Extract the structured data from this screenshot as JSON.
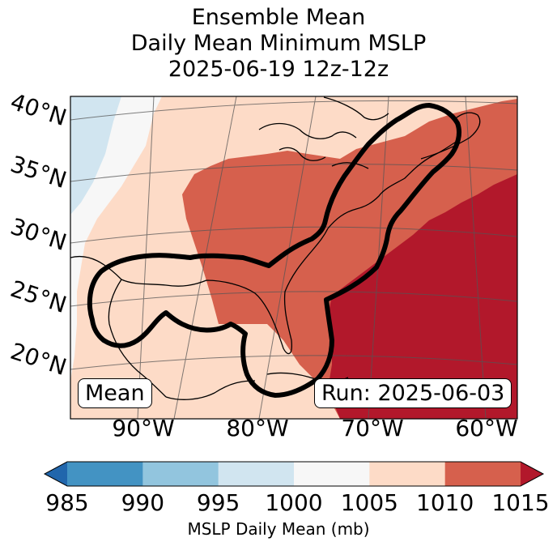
{
  "title": {
    "line1": "Ensemble Mean",
    "line2": "Daily Mean Minimum MSLP",
    "line3": "2025-06-19 12z-12z"
  },
  "map": {
    "lat_labels": [
      "40°N",
      "35°N",
      "30°N",
      "25°N",
      "20°N"
    ],
    "lon_labels": [
      "90°W",
      "80°W",
      "70°W",
      "60°W"
    ],
    "mean_label": "Mean",
    "run_label": "Run: 2025-06-03"
  },
  "colorbar": {
    "ticks": [
      "985",
      "990",
      "995",
      "1000",
      "1005",
      "1010",
      "1015"
    ],
    "colors": [
      "#2166ac",
      "#4393c3",
      "#92c5de",
      "#d1e5f0",
      "#f7f7f7",
      "#fddbc7",
      "#d6604d",
      "#b2182b"
    ],
    "label": "MSLP Daily Mean (mb)"
  }
}
